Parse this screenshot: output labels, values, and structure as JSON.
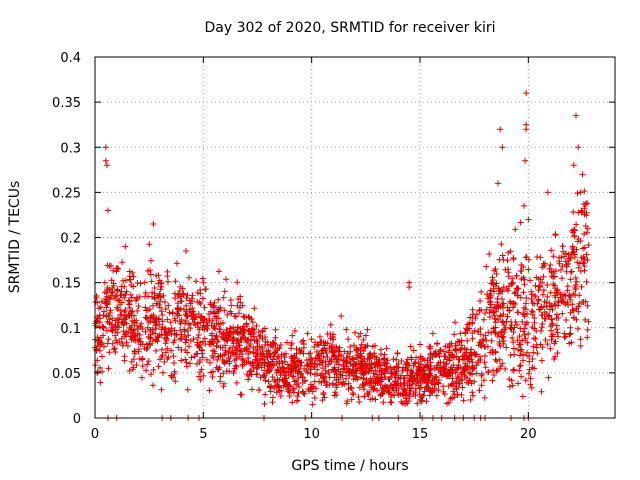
{
  "chart_data": {
    "type": "scatter",
    "title": "Day 302 of 2020, SRMTID for receiver kiri",
    "xlabel": "GPS time / hours",
    "ylabel": "SRMTID / TECUs",
    "xlim": [
      0,
      24
    ],
    "ylim": [
      0,
      0.4
    ],
    "xticks": [
      0,
      5,
      10,
      15,
      20
    ],
    "xtick_labels": [
      "0",
      "5",
      "10",
      "15",
      "20"
    ],
    "yticks": [
      0,
      0.05,
      0.1,
      0.15,
      0.2,
      0.25,
      0.3,
      0.35,
      0.4
    ],
    "ytick_labels": [
      "0",
      "0.05",
      "0.1",
      "0.15",
      "0.2",
      "0.25",
      "0.3",
      "0.35",
      "0.4"
    ],
    "grid": true,
    "marker": "+",
    "marker_color": "#e00000",
    "point_count_estimate": 2500,
    "trend_profile": {
      "hours": [
        0,
        1,
        2,
        3,
        4,
        5,
        6,
        7,
        8,
        9,
        10,
        11,
        12,
        13,
        14,
        15,
        16,
        17,
        18,
        19,
        20,
        21,
        22,
        22.8
      ],
      "median_srmtid": [
        0.09,
        0.12,
        0.1,
        0.11,
        0.1,
        0.1,
        0.09,
        0.08,
        0.06,
        0.05,
        0.055,
        0.06,
        0.06,
        0.05,
        0.04,
        0.045,
        0.055,
        0.06,
        0.1,
        0.12,
        0.11,
        0.13,
        0.15,
        0.17
      ],
      "spread": [
        0.03,
        0.04,
        0.04,
        0.04,
        0.035,
        0.035,
        0.03,
        0.03,
        0.025,
        0.02,
        0.025,
        0.025,
        0.025,
        0.02,
        0.02,
        0.02,
        0.02,
        0.025,
        0.04,
        0.05,
        0.05,
        0.05,
        0.05,
        0.06
      ]
    },
    "highlight_points": [
      {
        "x": 0.5,
        "y": 0.3
      },
      {
        "x": 0.5,
        "y": 0.285
      },
      {
        "x": 0.55,
        "y": 0.28
      },
      {
        "x": 0.6,
        "y": 0.23
      },
      {
        "x": 1.4,
        "y": 0.19
      },
      {
        "x": 2.7,
        "y": 0.215
      },
      {
        "x": 4.2,
        "y": 0.185
      },
      {
        "x": 14.5,
        "y": 0.15
      },
      {
        "x": 14.5,
        "y": 0.145
      },
      {
        "x": 18.7,
        "y": 0.32
      },
      {
        "x": 18.8,
        "y": 0.3
      },
      {
        "x": 18.6,
        "y": 0.26
      },
      {
        "x": 19.9,
        "y": 0.36
      },
      {
        "x": 19.9,
        "y": 0.325
      },
      {
        "x": 19.9,
        "y": 0.32
      },
      {
        "x": 19.85,
        "y": 0.285
      },
      {
        "x": 19.8,
        "y": 0.235
      },
      {
        "x": 20.9,
        "y": 0.25
      },
      {
        "x": 22.2,
        "y": 0.335
      },
      {
        "x": 22.3,
        "y": 0.3
      },
      {
        "x": 22.5,
        "y": 0.27
      },
      {
        "x": 22.1,
        "y": 0.28
      },
      {
        "x": 22.4,
        "y": 0.25
      },
      {
        "x": 20.0,
        "y": 0.22
      }
    ],
    "zero_points_hours": [
      0.6,
      1.0,
      3.1,
      3.5,
      4.3,
      4.8,
      7.8,
      9.7,
      11.4,
      12.8,
      13.1,
      14.0,
      15.1,
      15.6,
      16.0,
      16.6,
      17.0,
      17.5,
      17.8,
      18.0,
      19.2,
      19.8,
      20.0
    ]
  }
}
